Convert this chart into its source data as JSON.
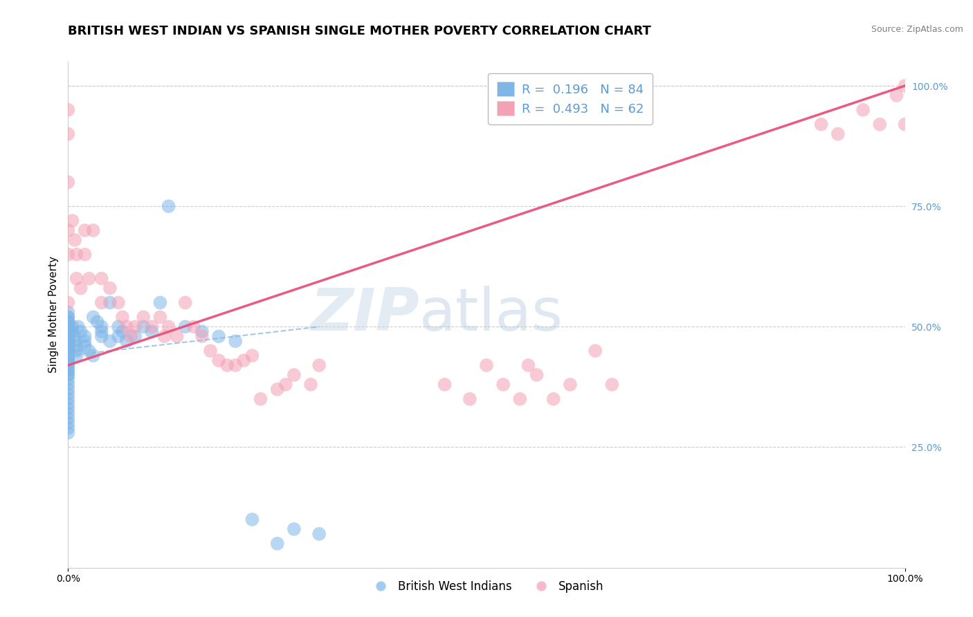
{
  "title": "BRITISH WEST INDIAN VS SPANISH SINGLE MOTHER POVERTY CORRELATION CHART",
  "source": "Source: ZipAtlas.com",
  "ylabel": "Single Mother Poverty",
  "blue_color": "#7EB6E8",
  "pink_color": "#F4A0B5",
  "blue_line_color": "#8ABBE0",
  "pink_line_color": "#E8527A",
  "blue_scatter_x": [
    0.0,
    0.0,
    0.0,
    0.0,
    0.0,
    0.0,
    0.0,
    0.0,
    0.0,
    0.0,
    0.0,
    0.0,
    0.0,
    0.0,
    0.0,
    0.0,
    0.0,
    0.0,
    0.0,
    0.0,
    0.0,
    0.0,
    0.0,
    0.0,
    0.0,
    0.0,
    0.0,
    0.0,
    0.0,
    0.0,
    0.0,
    0.0,
    0.0,
    0.0,
    0.0,
    0.0,
    0.0,
    0.0,
    0.0,
    0.0,
    0.0,
    0.0,
    0.0,
    0.0,
    0.0,
    0.0,
    0.005,
    0.005,
    0.007,
    0.008,
    0.01,
    0.01,
    0.01,
    0.012,
    0.015,
    0.02,
    0.02,
    0.02,
    0.025,
    0.03,
    0.03,
    0.035,
    0.04,
    0.04,
    0.04,
    0.05,
    0.05,
    0.06,
    0.06,
    0.065,
    0.07,
    0.08,
    0.09,
    0.1,
    0.11,
    0.12,
    0.14,
    0.16,
    0.18,
    0.2,
    0.22,
    0.25,
    0.27,
    0.3
  ],
  "blue_scatter_y": [
    0.5,
    0.48,
    0.46,
    0.45,
    0.44,
    0.43,
    0.42,
    0.41,
    0.4,
    0.39,
    0.38,
    0.37,
    0.36,
    0.35,
    0.34,
    0.33,
    0.32,
    0.31,
    0.3,
    0.29,
    0.28,
    0.5,
    0.49,
    0.48,
    0.47,
    0.46,
    0.45,
    0.44,
    0.43,
    0.42,
    0.41,
    0.4,
    0.5,
    0.49,
    0.48,
    0.52,
    0.51,
    0.5,
    0.49,
    0.48,
    0.47,
    0.46,
    0.45,
    0.53,
    0.52,
    0.51,
    0.5,
    0.49,
    0.48,
    0.47,
    0.46,
    0.45,
    0.44,
    0.5,
    0.49,
    0.48,
    0.47,
    0.46,
    0.45,
    0.44,
    0.52,
    0.51,
    0.5,
    0.49,
    0.48,
    0.47,
    0.55,
    0.5,
    0.48,
    0.49,
    0.47,
    0.48,
    0.5,
    0.49,
    0.55,
    0.75,
    0.5,
    0.49,
    0.48,
    0.47,
    0.1,
    0.05,
    0.08,
    0.07
  ],
  "pink_scatter_x": [
    0.0,
    0.0,
    0.0,
    0.0,
    0.0,
    0.0,
    0.005,
    0.008,
    0.01,
    0.01,
    0.015,
    0.02,
    0.02,
    0.025,
    0.03,
    0.04,
    0.04,
    0.05,
    0.06,
    0.065,
    0.07,
    0.075,
    0.08,
    0.09,
    0.1,
    0.11,
    0.115,
    0.12,
    0.13,
    0.14,
    0.15,
    0.16,
    0.17,
    0.18,
    0.19,
    0.2,
    0.21,
    0.22,
    0.23,
    0.25,
    0.26,
    0.27,
    0.29,
    0.3,
    0.45,
    0.48,
    0.5,
    0.52,
    0.54,
    0.55,
    0.56,
    0.58,
    0.6,
    0.63,
    0.65,
    0.9,
    0.92,
    0.95,
    0.97,
    0.99,
    1.0,
    1.0
  ],
  "pink_scatter_y": [
    0.95,
    0.9,
    0.8,
    0.7,
    0.65,
    0.55,
    0.72,
    0.68,
    0.65,
    0.6,
    0.58,
    0.65,
    0.7,
    0.6,
    0.7,
    0.6,
    0.55,
    0.58,
    0.55,
    0.52,
    0.5,
    0.48,
    0.5,
    0.52,
    0.5,
    0.52,
    0.48,
    0.5,
    0.48,
    0.55,
    0.5,
    0.48,
    0.45,
    0.43,
    0.42,
    0.42,
    0.43,
    0.44,
    0.35,
    0.37,
    0.38,
    0.4,
    0.38,
    0.42,
    0.38,
    0.35,
    0.42,
    0.38,
    0.35,
    0.42,
    0.4,
    0.35,
    0.38,
    0.45,
    0.38,
    0.92,
    0.9,
    0.95,
    0.92,
    0.98,
    0.92,
    1.0
  ],
  "blue_trend_x": [
    0.0,
    0.3
  ],
  "blue_trend_y": [
    0.44,
    0.5
  ],
  "pink_trend_x": [
    0.0,
    1.0
  ],
  "pink_trend_y": [
    0.42,
    1.0
  ],
  "xlim": [
    0.0,
    1.0
  ],
  "ylim": [
    0.0,
    1.05
  ],
  "grid_color": "#CCCCCC",
  "bg_color": "#FFFFFF",
  "watermark_zip": "ZIP",
  "watermark_atlas": "atlas",
  "title_fontsize": 13,
  "ylabel_fontsize": 11,
  "tick_fontsize": 10,
  "legend_fontsize": 13,
  "source_fontsize": 9,
  "legend_r1": "R =  0.196   N = 84",
  "legend_r2": "R =  0.493   N = 62",
  "bottom_legend_labels": [
    "British West Indians",
    "Spanish"
  ]
}
